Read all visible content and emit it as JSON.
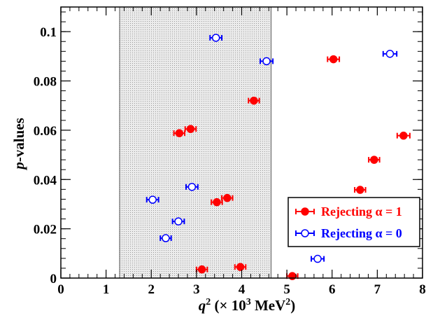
{
  "chart_data": {
    "type": "scatter",
    "title": "",
    "xlabel": {
      "var": "q",
      "sup": "2",
      "rest": " (× 10",
      "rest_sup": "3",
      "unit": " MeV",
      "unit_sup": "2",
      "close": ")"
    },
    "ylabel": {
      "var": "p",
      "rest": "-values"
    },
    "xlim": [
      0,
      8
    ],
    "ylim": [
      0,
      0.11
    ],
    "x_ticks": [
      0,
      1,
      2,
      3,
      4,
      5,
      6,
      7,
      8
    ],
    "y_ticks": [
      0,
      0.02,
      0.04,
      0.06,
      0.08,
      0.1
    ],
    "y_tick_labels": [
      "0",
      "0.02",
      "0.04",
      "0.06",
      "0.08",
      "0.1"
    ],
    "shaded_region": {
      "x": [
        1.3,
        4.65
      ]
    },
    "legend_position": "bottom-right",
    "series": [
      {
        "name": "Rejecting α = 1",
        "color": "#ff0000",
        "marker": "filled-circle",
        "points": [
          {
            "x": 5.12,
            "y": 0.0008,
            "xerr": 0.12
          },
          {
            "x": 3.12,
            "y": 0.0035,
            "xerr": 0.12
          },
          {
            "x": 3.97,
            "y": 0.0045,
            "xerr": 0.12
          },
          {
            "x": 3.45,
            "y": 0.0308,
            "xerr": 0.12
          },
          {
            "x": 3.68,
            "y": 0.0325,
            "xerr": 0.12
          },
          {
            "x": 6.62,
            "y": 0.0358,
            "xerr": 0.12
          },
          {
            "x": 6.93,
            "y": 0.048,
            "xerr": 0.12
          },
          {
            "x": 2.62,
            "y": 0.0588,
            "xerr": 0.12
          },
          {
            "x": 2.87,
            "y": 0.0605,
            "xerr": 0.12
          },
          {
            "x": 7.58,
            "y": 0.0578,
            "xerr": 0.14
          },
          {
            "x": 4.27,
            "y": 0.072,
            "xerr": 0.12
          },
          {
            "x": 6.03,
            "y": 0.0888,
            "xerr": 0.13
          }
        ]
      },
      {
        "name": "Rejecting α = 0",
        "color": "#0000ff",
        "marker": "open-circle",
        "points": [
          {
            "x": 5.68,
            "y": 0.0078,
            "xerr": 0.14
          },
          {
            "x": 2.32,
            "y": 0.0162,
            "xerr": 0.12
          },
          {
            "x": 2.6,
            "y": 0.023,
            "xerr": 0.13
          },
          {
            "x": 2.03,
            "y": 0.0318,
            "xerr": 0.13
          },
          {
            "x": 2.9,
            "y": 0.037,
            "xerr": 0.13
          },
          {
            "x": 4.55,
            "y": 0.088,
            "xerr": 0.14
          },
          {
            "x": 3.43,
            "y": 0.0975,
            "xerr": 0.13
          },
          {
            "x": 7.28,
            "y": 0.091,
            "xerr": 0.15
          }
        ]
      }
    ]
  }
}
